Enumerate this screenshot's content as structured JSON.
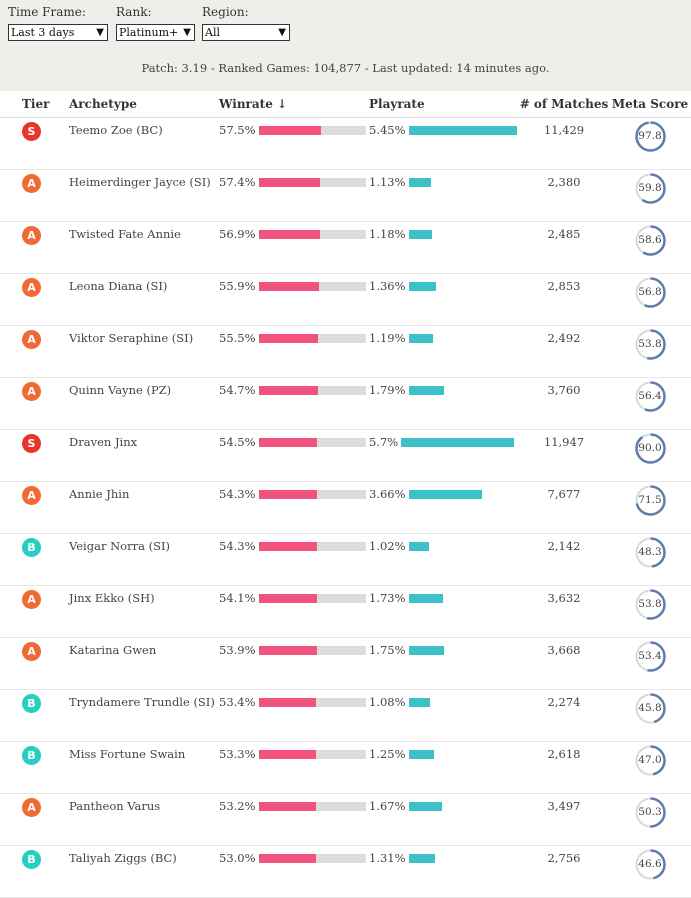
{
  "filters": {
    "time_frame": {
      "label": "Time Frame:",
      "value": "Last 3 days"
    },
    "rank": {
      "label": "Rank:",
      "value": "Platinum+"
    },
    "region": {
      "label": "Region:",
      "value": "All"
    }
  },
  "patch_info": "Patch: 3.19 - Ranked Games: 104,877 - Last updated: 14 minutes ago.",
  "columns": {
    "tier": "Tier",
    "archetype": "Archetype",
    "winrate": "Winrate ↓",
    "playrate": "Playrate",
    "matches": "# of Matches",
    "meta_score": "Meta Score"
  },
  "max_playrate": 5.7,
  "rows": [
    {
      "tier": "S",
      "archetype": "Teemo Zoe (BC)",
      "winrate": "57.5%",
      "win_pct": 57.5,
      "playrate": "5.45%",
      "play_pct": 5.45,
      "matches": "11,429",
      "meta_score": "97.8",
      "meta": 97.8
    },
    {
      "tier": "A",
      "archetype": "Heimerdinger Jayce (SI)",
      "winrate": "57.4%",
      "win_pct": 57.4,
      "playrate": "1.13%",
      "play_pct": 1.13,
      "matches": "2,380",
      "meta_score": "59.8",
      "meta": 59.8
    },
    {
      "tier": "A",
      "archetype": "Twisted Fate Annie",
      "winrate": "56.9%",
      "win_pct": 56.9,
      "playrate": "1.18%",
      "play_pct": 1.18,
      "matches": "2,485",
      "meta_score": "58.6",
      "meta": 58.6
    },
    {
      "tier": "A",
      "archetype": "Leona Diana (SI)",
      "winrate": "55.9%",
      "win_pct": 55.9,
      "playrate": "1.36%",
      "play_pct": 1.36,
      "matches": "2,853",
      "meta_score": "56.8",
      "meta": 56.8
    },
    {
      "tier": "A",
      "archetype": "Viktor Seraphine (SI)",
      "winrate": "55.5%",
      "win_pct": 55.5,
      "playrate": "1.19%",
      "play_pct": 1.19,
      "matches": "2,492",
      "meta_score": "53.8",
      "meta": 53.8
    },
    {
      "tier": "A",
      "archetype": "Quinn Vayne (PZ)",
      "winrate": "54.7%",
      "win_pct": 54.7,
      "playrate": "1.79%",
      "play_pct": 1.79,
      "matches": "3,760",
      "meta_score": "56.4",
      "meta": 56.4
    },
    {
      "tier": "S",
      "archetype": "Draven Jinx",
      "winrate": "54.5%",
      "win_pct": 54.5,
      "playrate": "5.7%",
      "play_pct": 5.7,
      "matches": "11,947",
      "meta_score": "90.0",
      "meta": 90.0
    },
    {
      "tier": "A",
      "archetype": "Annie Jhin",
      "winrate": "54.3%",
      "win_pct": 54.3,
      "playrate": "3.66%",
      "play_pct": 3.66,
      "matches": "7,677",
      "meta_score": "71.5",
      "meta": 71.5
    },
    {
      "tier": "B",
      "archetype": "Veigar Norra (SI)",
      "winrate": "54.3%",
      "win_pct": 54.3,
      "playrate": "1.02%",
      "play_pct": 1.02,
      "matches": "2,142",
      "meta_score": "48.3",
      "meta": 48.3
    },
    {
      "tier": "A",
      "archetype": "Jinx Ekko (SH)",
      "winrate": "54.1%",
      "win_pct": 54.1,
      "playrate": "1.73%",
      "play_pct": 1.73,
      "matches": "3,632",
      "meta_score": "53.8",
      "meta": 53.8
    },
    {
      "tier": "A",
      "archetype": "Katarina Gwen",
      "winrate": "53.9%",
      "win_pct": 53.9,
      "playrate": "1.75%",
      "play_pct": 1.75,
      "matches": "3,668",
      "meta_score": "53.4",
      "meta": 53.4
    },
    {
      "tier": "B",
      "archetype": "Tryndamere Trundle (SI)",
      "winrate": "53.4%",
      "win_pct": 53.4,
      "playrate": "1.08%",
      "play_pct": 1.08,
      "matches": "2,274",
      "meta_score": "45.8",
      "meta": 45.8
    },
    {
      "tier": "B",
      "archetype": "Miss Fortune Swain",
      "winrate": "53.3%",
      "win_pct": 53.3,
      "playrate": "1.25%",
      "play_pct": 1.25,
      "matches": "2,618",
      "meta_score": "47.0",
      "meta": 47.0
    },
    {
      "tier": "A",
      "archetype": "Pantheon Varus",
      "winrate": "53.2%",
      "win_pct": 53.2,
      "playrate": "1.67%",
      "play_pct": 1.67,
      "matches": "3,497",
      "meta_score": "50.3",
      "meta": 50.3
    },
    {
      "tier": "B",
      "archetype": "Taliyah Ziggs (BC)",
      "winrate": "53.0%",
      "win_pct": 53.0,
      "playrate": "1.31%",
      "play_pct": 1.31,
      "matches": "2,756",
      "meta_score": "46.6",
      "meta": 46.6
    }
  ]
}
